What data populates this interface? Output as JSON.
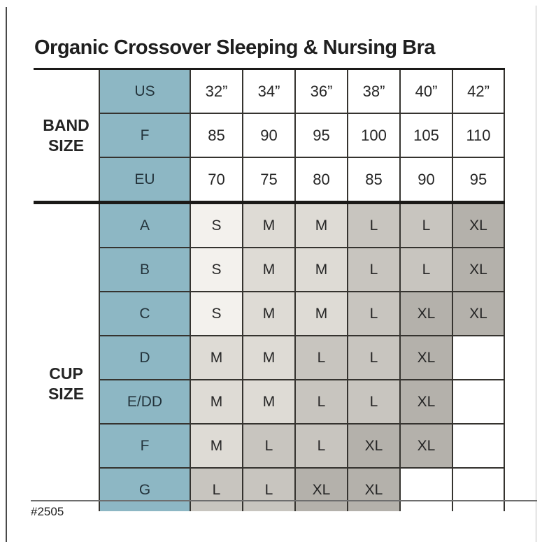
{
  "page": {
    "title": "Organic Crossover Sleeping & Nursing Bra",
    "footer_code": "#2505"
  },
  "chart_data": {
    "type": "table",
    "title": "Organic Crossover Sleeping & Nursing Bra",
    "columns": [
      "32”",
      "34”",
      "36”",
      "38”",
      "40”",
      "42”"
    ],
    "sections": [
      {
        "name": "BAND SIZE",
        "label_lines": [
          "BAND",
          "SIZE"
        ],
        "rows": [
          {
            "label": "US",
            "values": [
              "32”",
              "34”",
              "36”",
              "38”",
              "40”",
              "42”"
            ]
          },
          {
            "label": "F",
            "values": [
              "85",
              "90",
              "95",
              "100",
              "105",
              "110"
            ]
          },
          {
            "label": "EU",
            "values": [
              "70",
              "75",
              "80",
              "85",
              "90",
              "95"
            ]
          }
        ]
      },
      {
        "name": "CUP SIZE",
        "label_lines": [
          "CUP",
          "SIZE"
        ],
        "rows": [
          {
            "label": "A",
            "values": [
              "S",
              "M",
              "M",
              "L",
              "L",
              "XL"
            ]
          },
          {
            "label": "B",
            "values": [
              "S",
              "M",
              "M",
              "L",
              "L",
              "XL"
            ]
          },
          {
            "label": "C",
            "values": [
              "S",
              "M",
              "M",
              "L",
              "XL",
              "XL"
            ]
          },
          {
            "label": "D",
            "values": [
              "M",
              "M",
              "L",
              "L",
              "XL",
              ""
            ]
          },
          {
            "label": "E/DD",
            "values": [
              "M",
              "M",
              "L",
              "L",
              "XL",
              ""
            ]
          },
          {
            "label": "F",
            "values": [
              "M",
              "L",
              "L",
              "XL",
              "XL",
              ""
            ]
          },
          {
            "label": "G",
            "values": [
              "L",
              "L",
              "XL",
              "XL",
              "",
              ""
            ]
          }
        ]
      }
    ],
    "footnote": "#2505",
    "layout_hints": {
      "key_column_color": "#8DB7C4",
      "shade_colors": {
        "S": "#F3F1ED",
        "M": "#DEDBD5",
        "L": "#C8C5BF",
        "XL": "#B4B1AB",
        "empty": "#FFFFFF"
      },
      "grid": true,
      "heavy_separator_between_sections": true
    }
  }
}
